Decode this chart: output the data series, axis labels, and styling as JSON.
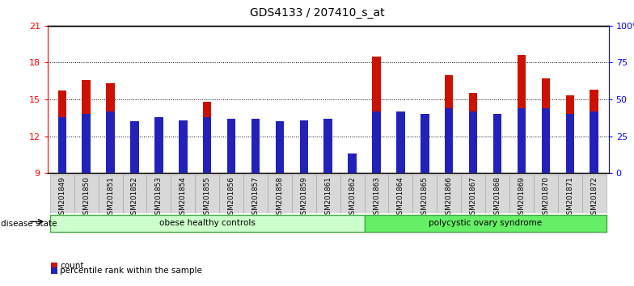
{
  "title": "GDS4133 / 207410_s_at",
  "samples": [
    "GSM201849",
    "GSM201850",
    "GSM201851",
    "GSM201852",
    "GSM201853",
    "GSM201854",
    "GSM201855",
    "GSM201856",
    "GSM201857",
    "GSM201858",
    "GSM201859",
    "GSM201861",
    "GSM201862",
    "GSM201863",
    "GSM201864",
    "GSM201865",
    "GSM201866",
    "GSM201867",
    "GSM201868",
    "GSM201869",
    "GSM201870",
    "GSM201871",
    "GSM201872"
  ],
  "count_values": [
    15.7,
    16.6,
    16.3,
    11.5,
    12.8,
    13.0,
    14.8,
    12.3,
    11.6,
    10.3,
    12.0,
    12.2,
    9.3,
    18.5,
    13.0,
    13.7,
    17.0,
    15.5,
    13.6,
    18.6,
    16.7,
    15.3,
    15.8
  ],
  "percentile_values_pct": [
    38,
    40,
    42,
    35,
    38,
    36,
    38,
    37,
    37,
    35,
    36,
    37,
    13,
    42,
    42,
    40,
    44,
    42,
    40,
    44,
    44,
    40,
    42
  ],
  "groups": [
    {
      "label": "obese healthy controls",
      "start": 0,
      "end": 12,
      "color": "#ccffcc",
      "edge": "#44aa44"
    },
    {
      "label": "polycystic ovary syndrome",
      "start": 13,
      "end": 22,
      "color": "#66ee66",
      "edge": "#44aa44"
    }
  ],
  "group_label_prefix": "disease state",
  "bar_color": "#cc1100",
  "percentile_color": "#2222bb",
  "bar_width": 0.35,
  "ylim_left": [
    9,
    21
  ],
  "ylim_right": [
    0,
    100
  ],
  "yticks_left": [
    9,
    12,
    15,
    18,
    21
  ],
  "yticks_right": [
    0,
    25,
    50,
    75,
    100
  ],
  "yticklabels_right": [
    "0",
    "25",
    "50",
    "75",
    "100%"
  ],
  "background_color": "#ffffff",
  "xticklabel_bg": "#d8d8d8",
  "legend_items": [
    {
      "label": "count",
      "color": "#cc1100"
    },
    {
      "label": "percentile rank within the sample",
      "color": "#2222bb"
    }
  ]
}
